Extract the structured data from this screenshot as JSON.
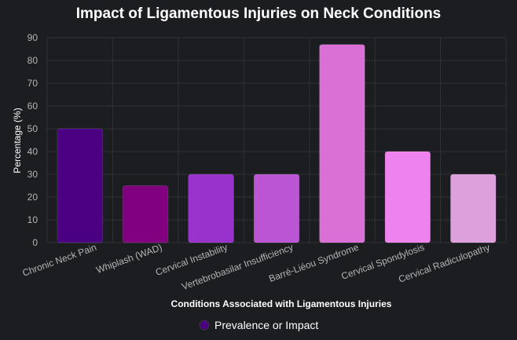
{
  "chart_data": {
    "type": "bar",
    "title": "Impact of Ligamentous Injuries on Neck Conditions",
    "xlabel": "Conditions Associated with Ligamentous Injuries",
    "ylabel": "Percentage (%)",
    "ylim": [
      0,
      90
    ],
    "yticks": [
      0,
      10,
      20,
      30,
      40,
      50,
      60,
      70,
      80,
      90
    ],
    "grid": true,
    "legend_position": "bottom",
    "categories": [
      "Chronic Neck Pain",
      "Whiplash (WAD)",
      "Cervical Instability",
      "Vertebrobasilar Insufficiency",
      "Barré-Liéou Syndrome",
      "Cervical Spondylosis",
      "Cervical Radiculopathy"
    ],
    "series": [
      {
        "name": "Prevalence or Impact",
        "values": [
          50,
          25,
          30,
          30,
          87,
          40,
          30
        ],
        "colors": [
          "#4b0082",
          "#800080",
          "#9932cc",
          "#ba55d3",
          "#da70d6",
          "#ee82ee",
          "#dda0dd"
        ],
        "legend_color": "#4b0082"
      }
    ]
  }
}
